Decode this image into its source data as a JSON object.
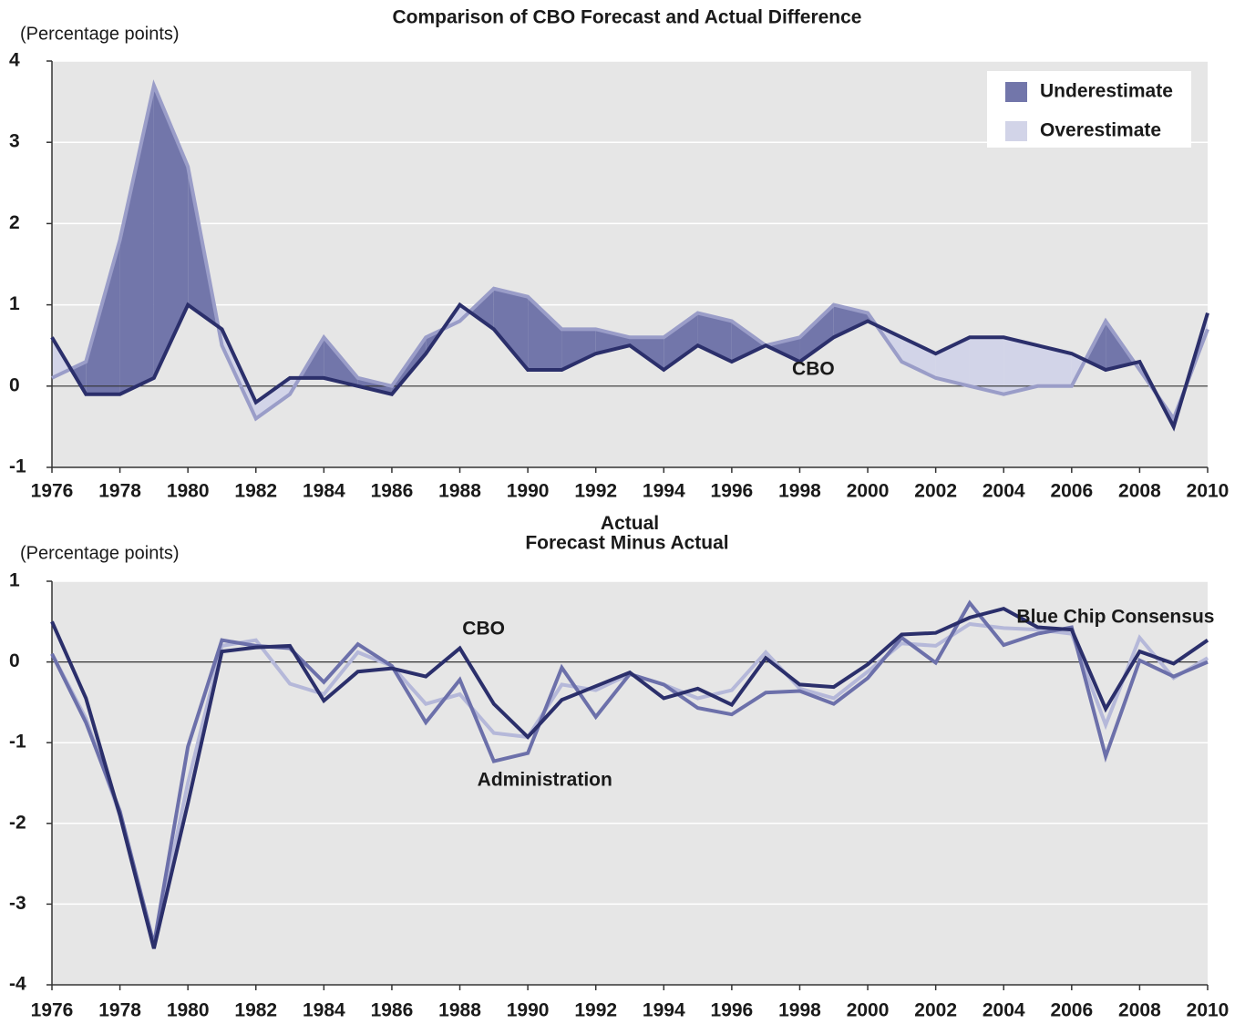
{
  "chart_data": [
    {
      "type": "line",
      "title": "Comparison of CBO Forecast and Actual Difference",
      "y_label": "(Percentage points)",
      "x": [
        1976,
        1977,
        1978,
        1979,
        1980,
        1981,
        1982,
        1983,
        1984,
        1985,
        1986,
        1987,
        1988,
        1989,
        1990,
        1991,
        1992,
        1993,
        1994,
        1995,
        1996,
        1997,
        1998,
        1999,
        2000,
        2001,
        2002,
        2003,
        2004,
        2005,
        2006,
        2007,
        2008,
        2009,
        2010
      ],
      "xlim": [
        1976,
        2010
      ],
      "xticks": [
        1976,
        1978,
        1980,
        1982,
        1984,
        1986,
        1988,
        1990,
        1992,
        1994,
        1996,
        1998,
        2000,
        2002,
        2004,
        2006,
        2008,
        2010
      ],
      "ylim": [
        -1,
        4
      ],
      "yticks": [
        -1,
        0,
        1,
        2,
        3,
        4
      ],
      "grid": true,
      "series": [
        {
          "name": "CBO",
          "color": "#2b2f6b",
          "values": [
            0.6,
            -0.1,
            -0.1,
            0.1,
            1.0,
            0.7,
            -0.2,
            0.1,
            0.1,
            0.0,
            -0.1,
            0.4,
            1.0,
            0.7,
            0.2,
            0.2,
            0.4,
            0.5,
            0.2,
            0.5,
            0.3,
            0.5,
            0.3,
            0.6,
            0.8,
            0.6,
            0.4,
            0.6,
            0.6,
            0.5,
            0.4,
            0.2,
            0.3,
            -0.5,
            0.9
          ]
        },
        {
          "name": "Actual",
          "color": "#9a9dc8",
          "values": [
            0.1,
            0.3,
            1.8,
            3.7,
            2.7,
            0.5,
            -0.4,
            -0.1,
            0.6,
            0.1,
            0.0,
            0.6,
            0.8,
            1.2,
            1.1,
            0.7,
            0.7,
            0.6,
            0.6,
            0.9,
            0.8,
            0.5,
            0.6,
            1.0,
            0.9,
            0.3,
            0.1,
            0.0,
            -0.1,
            0.0,
            0.0,
            0.8,
            0.2,
            -0.4,
            0.7
          ]
        }
      ],
      "areas": [
        {
          "name": "Underestimate",
          "color": "#7276aa"
        },
        {
          "name": "Overestimate",
          "color": "#d2d4e8"
        }
      ],
      "legend": "upper right"
    },
    {
      "type": "line",
      "title": "Forecast Minus Actual",
      "y_label": "(Percentage points)",
      "x": [
        1976,
        1977,
        1978,
        1979,
        1980,
        1981,
        1982,
        1983,
        1984,
        1985,
        1986,
        1987,
        1988,
        1989,
        1990,
        1991,
        1992,
        1993,
        1994,
        1995,
        1996,
        1997,
        1998,
        1999,
        2000,
        2001,
        2002,
        2003,
        2004,
        2005,
        2006,
        2007,
        2008,
        2009,
        2010
      ],
      "xlim": [
        1976,
        2010
      ],
      "xticks": [
        1976,
        1978,
        1980,
        1982,
        1984,
        1986,
        1988,
        1990,
        1992,
        1994,
        1996,
        1998,
        2000,
        2002,
        2004,
        2006,
        2008,
        2010
      ],
      "ylim": [
        -4,
        1
      ],
      "yticks": [
        -4,
        -3,
        -2,
        -1,
        0,
        1
      ],
      "grid": true,
      "series": [
        {
          "name": "Blue Chip Consensus",
          "color": "#b5b8d9",
          "values": [
            0.1,
            -0.7,
            -1.9,
            -3.5,
            -1.5,
            0.2,
            0.27,
            -0.27,
            -0.4,
            0.12,
            -0.05,
            -0.52,
            -0.4,
            -0.88,
            -0.93,
            -0.28,
            -0.35,
            -0.15,
            -0.28,
            -0.45,
            -0.35,
            0.12,
            -0.33,
            -0.45,
            -0.12,
            0.23,
            0.2,
            0.47,
            0.42,
            0.4,
            0.35,
            -0.78,
            0.3,
            -0.2,
            0.05
          ]
        },
        {
          "name": "Administration",
          "color": "#6c70aa",
          "values": [
            0.1,
            -0.75,
            -1.85,
            -3.5,
            -1.05,
            0.27,
            0.2,
            0.17,
            -0.25,
            0.22,
            -0.05,
            -0.75,
            -0.22,
            -1.23,
            -1.13,
            -0.07,
            -0.68,
            -0.15,
            -0.28,
            -0.57,
            -0.65,
            -0.38,
            -0.36,
            -0.52,
            -0.2,
            0.3,
            -0.01,
            0.73,
            0.21,
            0.35,
            0.43,
            -1.17,
            0.02,
            -0.18,
            0.0
          ]
        },
        {
          "name": "CBO",
          "color": "#2b2f6b",
          "values": [
            0.5,
            -0.45,
            -1.9,
            -3.55,
            -1.75,
            0.13,
            0.18,
            0.2,
            -0.48,
            -0.12,
            -0.08,
            -0.18,
            0.17,
            -0.52,
            -0.93,
            -0.47,
            -0.3,
            -0.13,
            -0.45,
            -0.33,
            -0.53,
            0.05,
            -0.28,
            -0.31,
            -0.03,
            0.34,
            0.36,
            0.55,
            0.66,
            0.43,
            0.4,
            -0.58,
            0.13,
            -0.02,
            0.27
          ]
        }
      ]
    }
  ]
}
